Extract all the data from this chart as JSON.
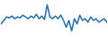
{
  "y": [
    18,
    22,
    26,
    25,
    27,
    24,
    26,
    25,
    28,
    26,
    24,
    27,
    25,
    29,
    24,
    27,
    23,
    40,
    26,
    24,
    27,
    24,
    28,
    22,
    14,
    22,
    10,
    24,
    18,
    28,
    22,
    24,
    20,
    26,
    22,
    24,
    20,
    22,
    24,
    20
  ],
  "line_color": "#2070b4",
  "bg_color": "#ffffff",
  "ylim_min": 0,
  "ylim_max": 45,
  "linewidth": 1.1
}
